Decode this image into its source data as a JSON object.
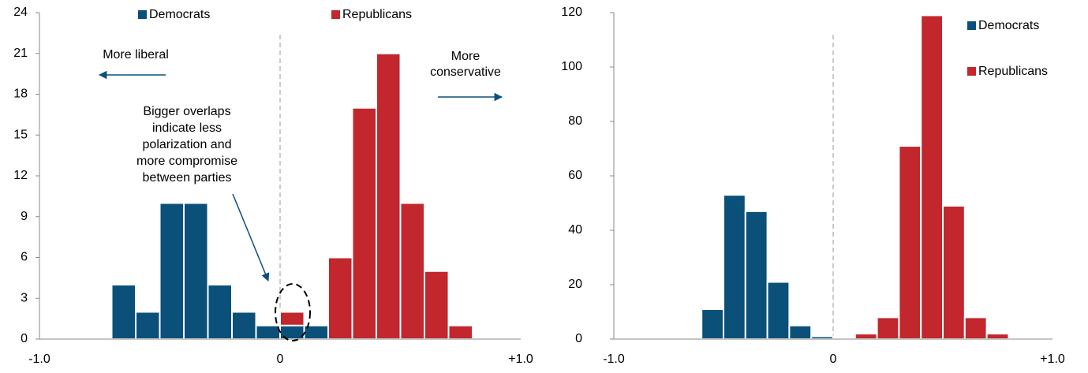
{
  "chart_data": [
    {
      "type": "histogram",
      "bins": [
        -0.7,
        -0.6,
        -0.5,
        -0.4,
        -0.3,
        -0.2,
        -0.1,
        0,
        0.1,
        0.2,
        0.3,
        0.4,
        0.5,
        0.6,
        0.7,
        0.8
      ],
      "series": [
        {
          "name": "Democrats",
          "color": "#0b5078",
          "values": [
            4,
            2,
            10,
            10,
            4,
            2,
            1,
            1,
            1,
            0,
            0,
            0,
            0,
            0,
            0
          ]
        },
        {
          "name": "Republicans",
          "color": "#c1272d",
          "values": [
            0,
            0,
            0,
            0,
            0,
            0,
            0,
            1,
            0,
            6,
            17,
            21,
            10,
            5,
            1
          ]
        }
      ],
      "stacked": true,
      "xlim": [
        -1,
        1
      ],
      "xticks": [
        {
          "value": -1,
          "label": "-1.0"
        },
        0,
        {
          "value": 1,
          "label": "+1.0"
        }
      ],
      "ylim": [
        0,
        24
      ],
      "yticks": [
        0,
        3,
        6,
        9,
        12,
        15,
        18,
        21,
        24
      ],
      "legend": "top",
      "annotations": {
        "liberal": [
          "More liberal"
        ],
        "conservative": [
          "More",
          "conservative"
        ],
        "overlap": [
          "Bigger overlaps",
          "indicate less",
          "polarization and",
          "more compromise",
          "between parties"
        ]
      }
    },
    {
      "type": "histogram",
      "bins": [
        -0.6,
        -0.5,
        -0.4,
        -0.3,
        -0.2,
        -0.1,
        0,
        0.1,
        0.2,
        0.3,
        0.4,
        0.5,
        0.6,
        0.7,
        0.8
      ],
      "series": [
        {
          "name": "Democrats",
          "color": "#0b5078",
          "values": [
            11,
            53,
            47,
            21,
            5,
            1,
            0,
            0,
            0,
            0,
            0,
            0,
            0,
            0
          ]
        },
        {
          "name": "Republicans",
          "color": "#c1272d",
          "values": [
            0,
            0,
            0,
            0,
            0,
            0,
            0,
            2,
            8,
            71,
            119,
            49,
            8,
            2
          ]
        }
      ],
      "stacked": true,
      "xlim": [
        -1,
        1
      ],
      "xticks": [
        {
          "value": -1,
          "label": "-1.0"
        },
        0,
        {
          "value": 1,
          "label": "+1.0"
        }
      ],
      "ylim": [
        0,
        120
      ],
      "yticks": [
        0,
        20,
        40,
        60,
        80,
        100,
        120
      ],
      "legend": "upper right"
    }
  ]
}
